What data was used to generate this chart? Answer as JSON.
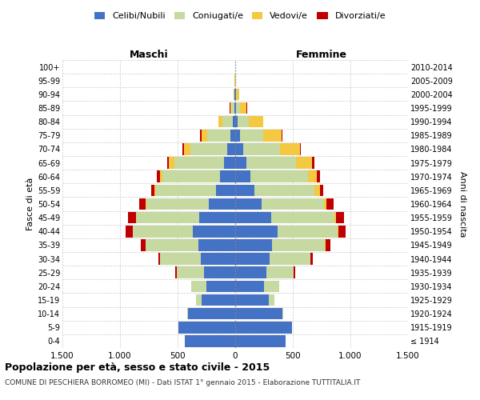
{
  "age_groups": [
    "100+",
    "95-99",
    "90-94",
    "85-89",
    "80-84",
    "75-79",
    "70-74",
    "65-69",
    "60-64",
    "55-59",
    "50-54",
    "45-49",
    "40-44",
    "35-39",
    "30-34",
    "25-29",
    "20-24",
    "15-19",
    "10-14",
    "5-9",
    "0-4"
  ],
  "birth_years": [
    "≤ 1914",
    "1915-1919",
    "1920-1924",
    "1925-1929",
    "1930-1934",
    "1935-1939",
    "1940-1944",
    "1945-1949",
    "1950-1954",
    "1955-1959",
    "1960-1964",
    "1965-1969",
    "1970-1974",
    "1975-1979",
    "1980-1984",
    "1985-1989",
    "1990-1994",
    "1995-1999",
    "2000-2004",
    "2005-2009",
    "2010-2014"
  ],
  "males": {
    "celibi": [
      1,
      2,
      4,
      8,
      20,
      40,
      70,
      100,
      130,
      170,
      230,
      310,
      370,
      320,
      300,
      270,
      250,
      290,
      410,
      490,
      440
    ],
    "coniugati": [
      0,
      1,
      5,
      25,
      90,
      200,
      320,
      430,
      500,
      520,
      540,
      550,
      520,
      460,
      350,
      240,
      130,
      50,
      8,
      2,
      0
    ],
    "vedovi": [
      0,
      1,
      4,
      12,
      35,
      55,
      55,
      45,
      25,
      12,
      8,
      4,
      2,
      1,
      0,
      0,
      0,
      0,
      0,
      0,
      0
    ],
    "divorziati": [
      0,
      0,
      0,
      1,
      4,
      8,
      12,
      18,
      25,
      30,
      55,
      65,
      60,
      35,
      20,
      8,
      4,
      1,
      0,
      0,
      0
    ]
  },
  "females": {
    "nubili": [
      1,
      3,
      6,
      10,
      20,
      40,
      70,
      100,
      130,
      170,
      230,
      310,
      370,
      320,
      300,
      270,
      250,
      290,
      410,
      490,
      440
    ],
    "coniugate": [
      0,
      1,
      8,
      35,
      100,
      200,
      320,
      430,
      500,
      520,
      540,
      550,
      520,
      460,
      350,
      240,
      130,
      50,
      8,
      2,
      0
    ],
    "vedove": [
      0,
      5,
      18,
      55,
      120,
      165,
      170,
      140,
      80,
      45,
      25,
      12,
      6,
      3,
      1,
      0,
      0,
      0,
      0,
      0,
      0
    ],
    "divorziate": [
      0,
      0,
      0,
      1,
      4,
      8,
      12,
      18,
      25,
      30,
      60,
      70,
      65,
      40,
      25,
      10,
      4,
      1,
      0,
      0,
      0
    ]
  },
  "colors": {
    "celibi_nubili": "#4472C4",
    "coniugati_e": "#C5D9A0",
    "vedovi_e": "#F5C842",
    "divorziati_e": "#C00000"
  },
  "xlim": 1500,
  "title": "Popolazione per età, sesso e stato civile - 2015",
  "subtitle": "COMUNE DI PESCHIERA BORROMEO (MI) - Dati ISTAT 1° gennaio 2015 - Elaborazione TUTTITALIA.IT",
  "xlabel_left": "Maschi",
  "xlabel_right": "Femmine",
  "ylabel": "Fasce di età",
  "ylabel_right": "Anni di nascita",
  "bg_color": "#FFFFFF",
  "grid_color": "#CCCCCC"
}
